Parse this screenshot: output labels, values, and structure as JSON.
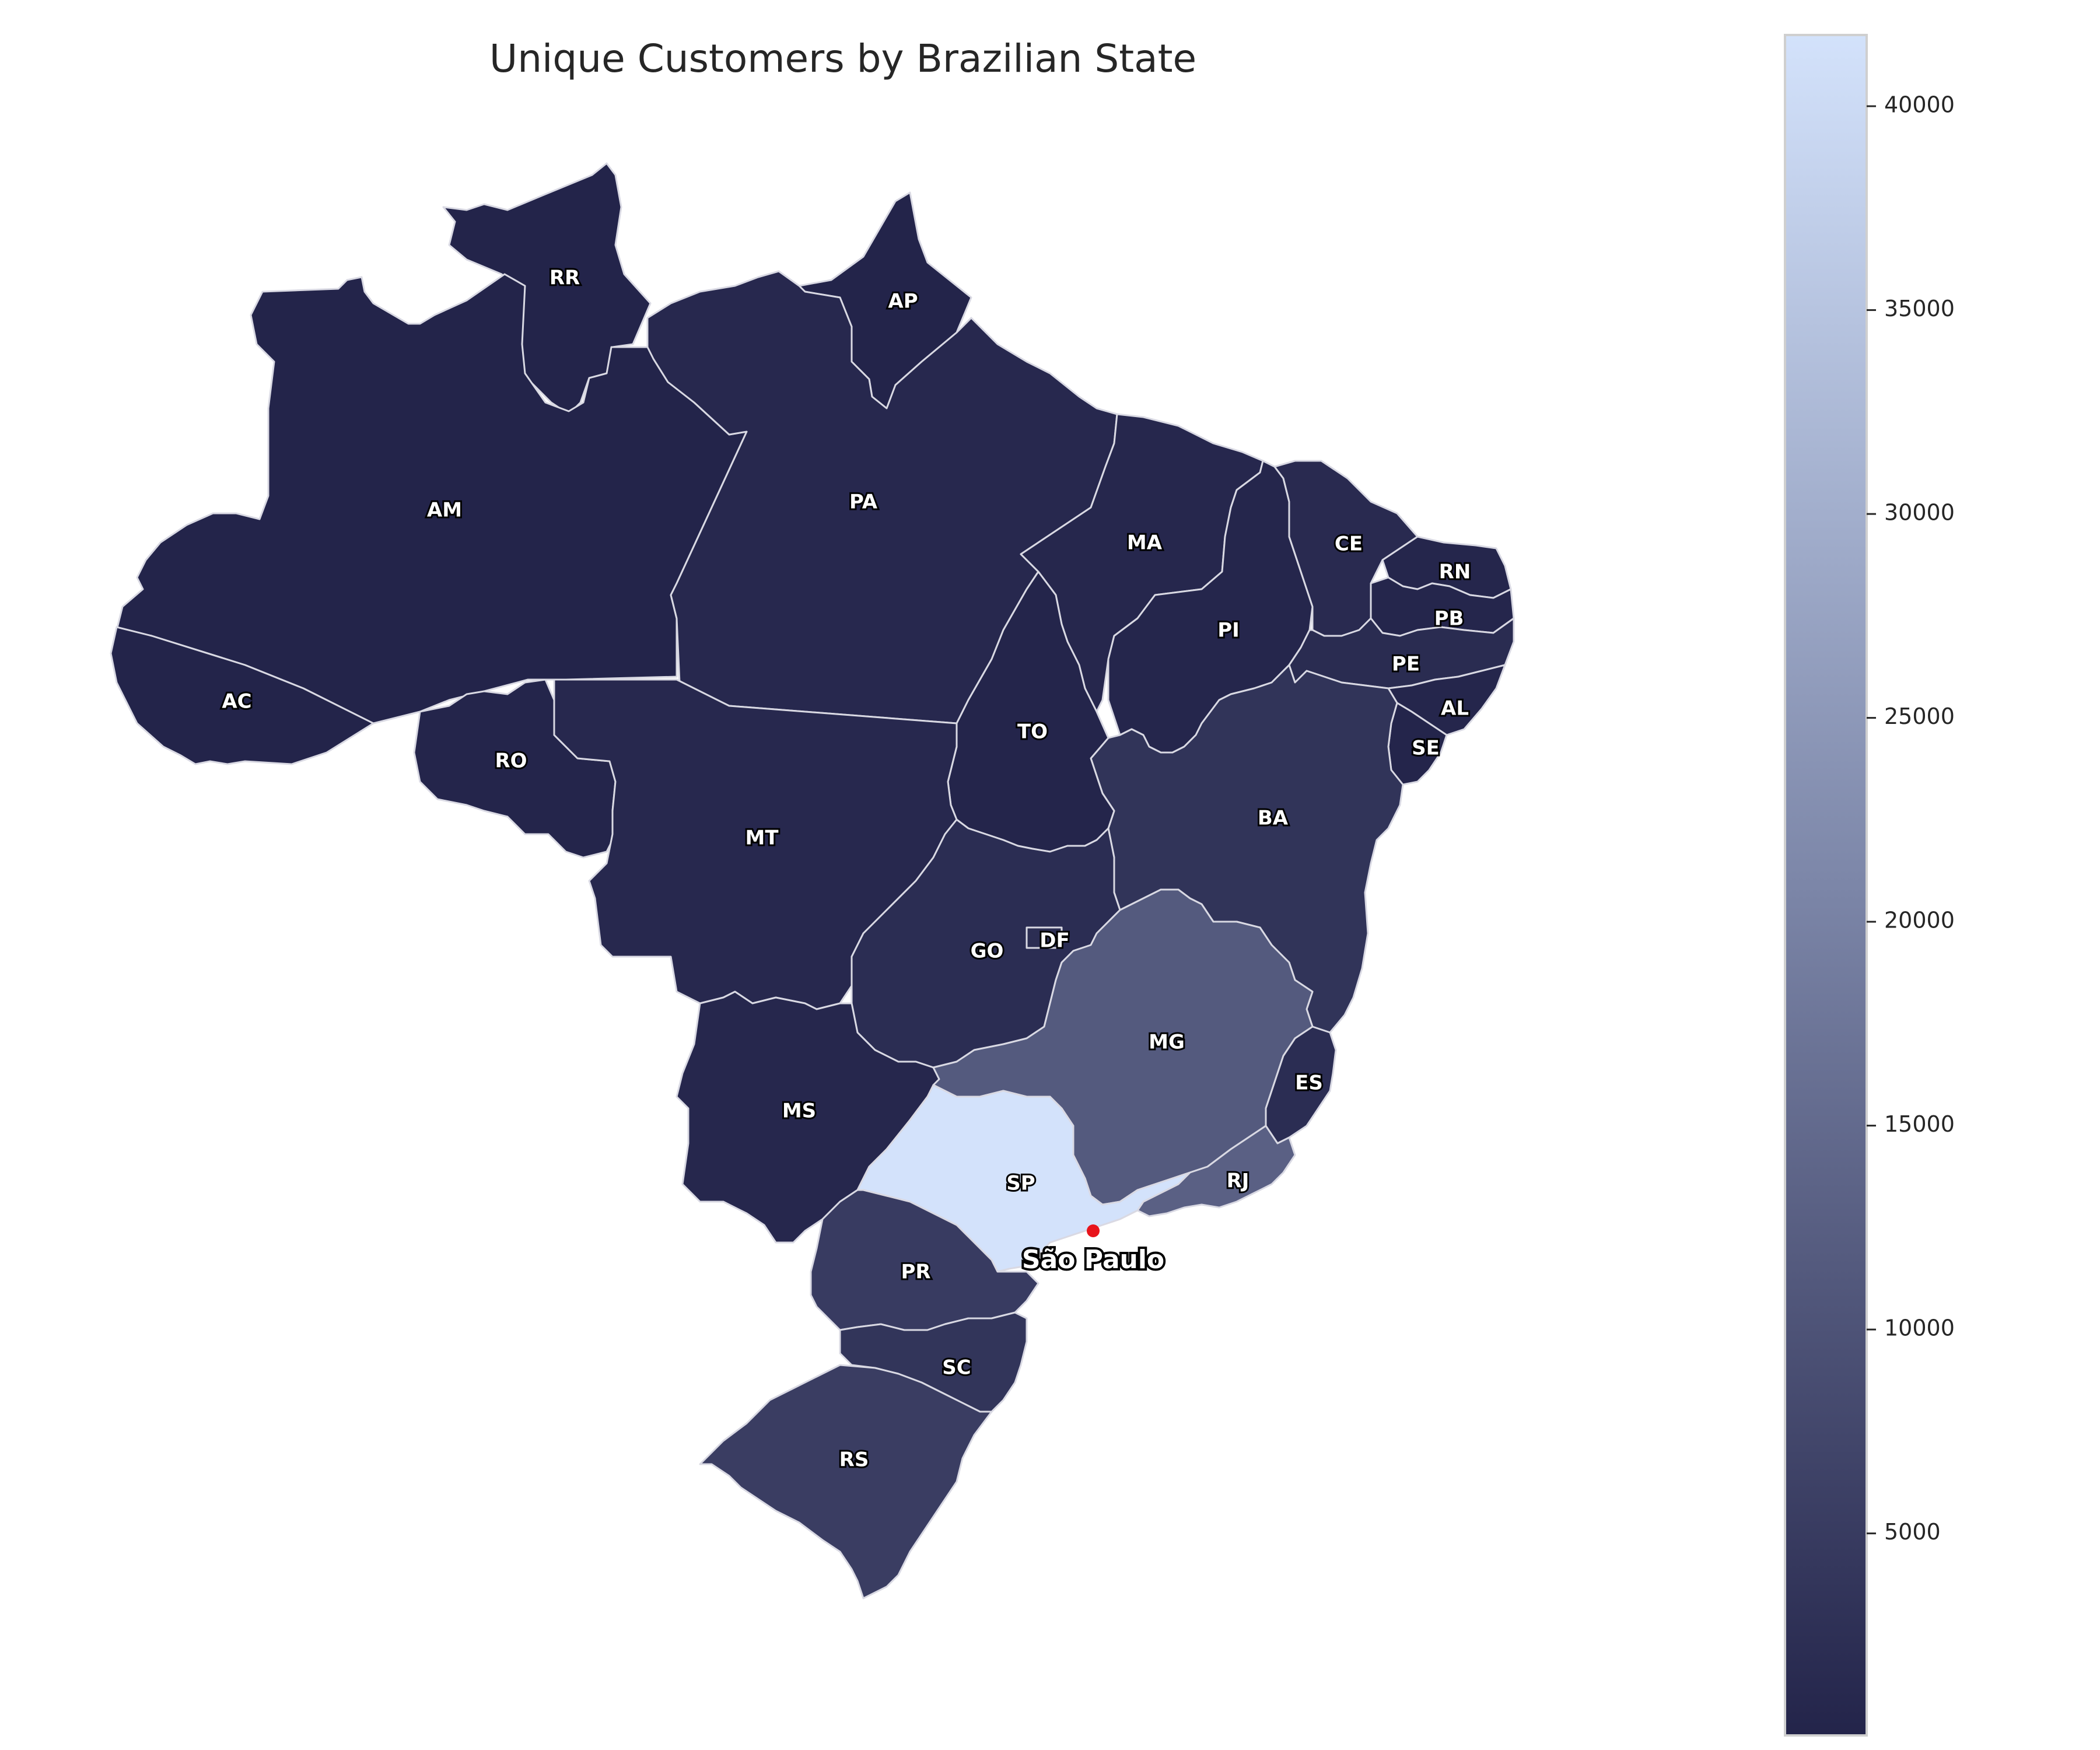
{
  "title": "Unique Customers by Brazilian State",
  "colorbar": {
    "min": 46,
    "max": 41746,
    "ticks": [
      5000,
      10000,
      15000,
      20000,
      25000,
      30000,
      35000,
      40000
    ],
    "tick_labels": [
      "5000",
      "10000",
      "15000",
      "20000",
      "25000",
      "30000",
      "35000",
      "40000"
    ],
    "color_low": "#23244a",
    "color_mid": "#7c86a8",
    "color_high": "#d3e2fb"
  },
  "states": [
    {
      "code": "AC",
      "label": "AC",
      "value": 81
    },
    {
      "code": "AL",
      "label": "AL",
      "value": 413
    },
    {
      "code": "AM",
      "label": "AM",
      "value": 148
    },
    {
      "code": "AP",
      "label": "AP",
      "value": 68
    },
    {
      "code": "BA",
      "label": "BA",
      "value": 3380
    },
    {
      "code": "CE",
      "label": "CE",
      "value": 1336
    },
    {
      "code": "DF",
      "label": "DF",
      "value": 2140
    },
    {
      "code": "ES",
      "label": "ES",
      "value": 2033
    },
    {
      "code": "GO",
      "label": "GO",
      "value": 2020
    },
    {
      "code": "MA",
      "label": "MA",
      "value": 747
    },
    {
      "code": "MG",
      "label": "MG",
      "value": 11635
    },
    {
      "code": "MS",
      "label": "MS",
      "value": 715
    },
    {
      "code": "MT",
      "label": "MT",
      "value": 907
    },
    {
      "code": "PA",
      "label": "PA",
      "value": 975
    },
    {
      "code": "PB",
      "label": "PB",
      "value": 536
    },
    {
      "code": "PE",
      "label": "PE",
      "value": 1652
    },
    {
      "code": "PI",
      "label": "PI",
      "value": 495
    },
    {
      "code": "PR",
      "label": "PR",
      "value": 5045
    },
    {
      "code": "RJ",
      "label": "RJ",
      "value": 12852
    },
    {
      "code": "RN",
      "label": "RN",
      "value": 485
    },
    {
      "code": "RO",
      "label": "RO",
      "value": 253
    },
    {
      "code": "RR",
      "label": "RR",
      "value": 46
    },
    {
      "code": "RS",
      "label": "RS",
      "value": 5466
    },
    {
      "code": "SC",
      "label": "SC",
      "value": 3637
    },
    {
      "code": "SE",
      "label": "SE",
      "value": 350
    },
    {
      "code": "SP",
      "label": "SP",
      "value": 41746
    },
    {
      "code": "TO",
      "label": "TO",
      "value": 280
    }
  ],
  "city_marker": {
    "name": "São Paulo",
    "color": "#e8141b"
  }
}
